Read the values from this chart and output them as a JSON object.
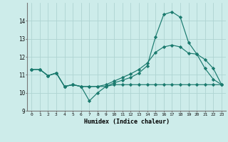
{
  "x": [
    0,
    1,
    2,
    3,
    4,
    5,
    6,
    7,
    8,
    9,
    10,
    11,
    12,
    13,
    14,
    15,
    16,
    17,
    18,
    19,
    20,
    21,
    22,
    23
  ],
  "line1": [
    11.3,
    11.3,
    10.95,
    11.1,
    10.35,
    10.45,
    10.35,
    9.55,
    10.0,
    10.35,
    10.55,
    10.7,
    10.85,
    11.1,
    11.5,
    13.1,
    14.35,
    14.5,
    14.2,
    12.8,
    12.15,
    11.35,
    10.75,
    10.45
  ],
  "line2": [
    11.3,
    11.3,
    10.95,
    11.1,
    10.35,
    10.45,
    10.35,
    10.35,
    10.35,
    10.45,
    10.65,
    10.85,
    11.05,
    11.3,
    11.65,
    12.25,
    12.55,
    12.65,
    12.55,
    12.2,
    12.15,
    11.85,
    11.35,
    10.45
  ],
  "line3": [
    11.3,
    11.3,
    10.95,
    11.1,
    10.35,
    10.45,
    10.35,
    10.35,
    10.35,
    10.35,
    10.45,
    10.45,
    10.45,
    10.45,
    10.45,
    10.45,
    10.45,
    10.45,
    10.45,
    10.45,
    10.45,
    10.45,
    10.45,
    10.45
  ],
  "xlabel": "Humidex (Indice chaleur)",
  "color": "#1a7a6e",
  "bg_color": "#cdecea",
  "grid_color": "#aed4d2",
  "ylim": [
    9.0,
    15.0
  ],
  "xlim": [
    -0.5,
    23.5
  ],
  "yticks": [
    9,
    10,
    11,
    12,
    13,
    14
  ],
  "xticks": [
    0,
    1,
    2,
    3,
    4,
    5,
    6,
    7,
    8,
    9,
    10,
    11,
    12,
    13,
    14,
    15,
    16,
    17,
    18,
    19,
    20,
    21,
    22,
    23
  ]
}
